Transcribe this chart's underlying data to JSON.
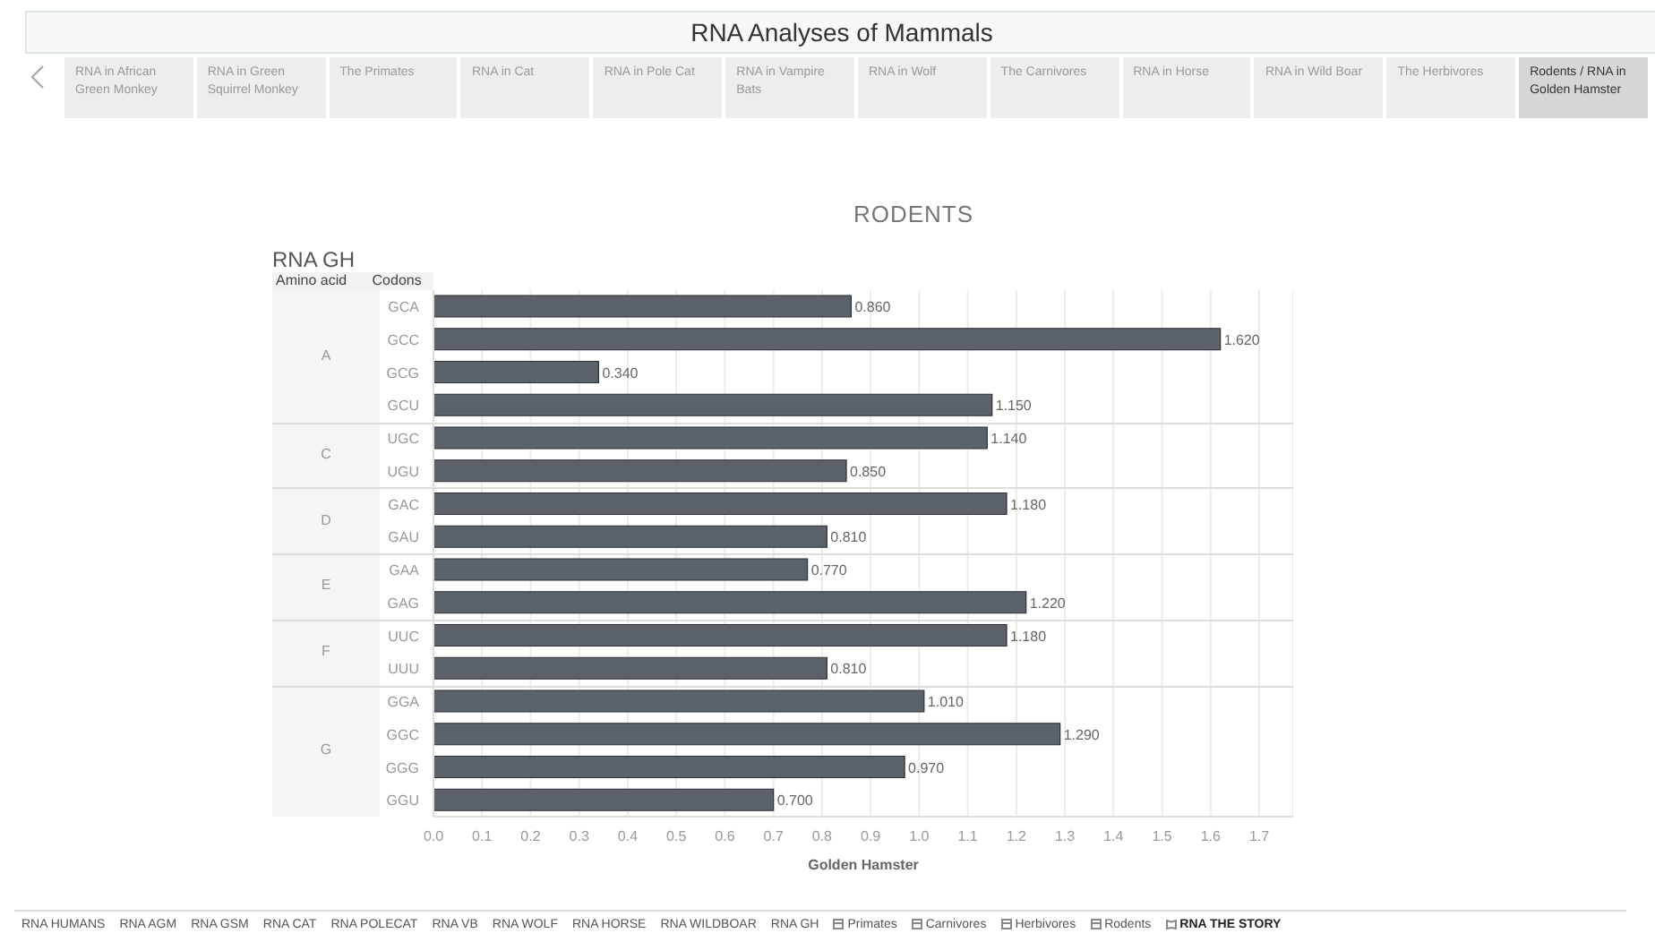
{
  "chart_data": {
    "type": "bar",
    "orientation": "horizontal",
    "title": "RODENTS",
    "subtitle": "RNA GH",
    "xlabel": "Golden Hamster",
    "categories": [
      "GCA",
      "GCC",
      "GCG",
      "GCU",
      "UGC",
      "UGU",
      "GAC",
      "GAU",
      "GAA",
      "GAG",
      "UUC",
      "UUU",
      "GGA",
      "GGC",
      "GGG",
      "GGU"
    ],
    "values": [
      0.86,
      1.62,
      0.34,
      1.15,
      1.14,
      0.85,
      1.18,
      0.81,
      0.77,
      1.22,
      1.18,
      0.81,
      1.01,
      1.29,
      0.97,
      0.7
    ],
    "value_labels": [
      "0.860",
      "1.620",
      "0.340",
      "1.150",
      "1.140",
      "0.850",
      "1.180",
      "0.810",
      "0.770",
      "1.220",
      "1.180",
      "0.810",
      "1.010",
      "1.290",
      "0.970",
      "0.700"
    ],
    "color": "#5b626a",
    "xlim": [
      0,
      1.77
    ],
    "xticks": [
      {
        "value": 0,
        "label": "0.0"
      },
      {
        "value": 0.1,
        "label": "0.1"
      },
      {
        "value": 0.2,
        "label": "0.2"
      },
      {
        "value": 0.3,
        "label": "0.3"
      },
      {
        "value": 0.4,
        "label": "0.4"
      },
      {
        "value": 0.5,
        "label": "0.5"
      },
      {
        "value": 0.6,
        "label": "0.6"
      },
      {
        "value": 0.7,
        "label": "0.7"
      },
      {
        "value": 0.8,
        "label": "0.8"
      },
      {
        "value": 0.9,
        "label": "0.9"
      },
      {
        "value": 1.0,
        "label": "1.0"
      },
      {
        "value": 1.1,
        "label": "1.1"
      },
      {
        "value": 1.2,
        "label": "1.2"
      },
      {
        "value": 1.3,
        "label": "1.3"
      },
      {
        "value": 1.4,
        "label": "1.4"
      },
      {
        "value": 1.5,
        "label": "1.5"
      },
      {
        "value": 1.6,
        "label": "1.6"
      },
      {
        "value": 1.7,
        "label": "1.7"
      }
    ],
    "grid": "x",
    "annotations": [
      "RNA Analyses of Mammals",
      "RNA in African Green Monkey",
      "RNA in Green Squirrel Monkey",
      "The Primates",
      "RNA in Cat",
      "RNA in Pole Cat",
      "RNA in Vampire Bats",
      "RNA in Wolf",
      "The Carnivores",
      "RNA in Horse",
      "RNA in Wild Boar",
      "The Herbivores",
      "Rodents / RNA in Golden Hamster",
      "Amino acid",
      "Codons",
      "RNA HUMANS",
      "RNA AGM",
      "RNA GSM",
      "RNA CAT",
      "RNA POLECAT",
      "RNA VB",
      "RNA WOLF",
      "RNA HORSE",
      "RNA WILDBOAR",
      "RNA GH",
      "Primates",
      "Carnivores",
      "Herbivores",
      "Rodents",
      "RNA THE STORY",
      "A",
      "C",
      "D",
      "E",
      "F",
      "G"
    ]
  }
}
